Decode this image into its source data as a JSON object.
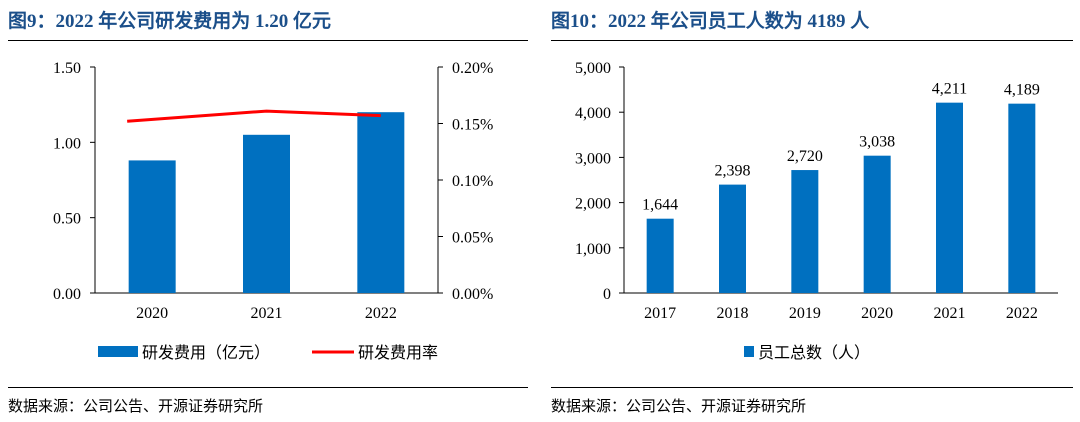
{
  "left": {
    "title": "图9：2022 年公司研发费用为 1.20 亿元",
    "source": "数据来源：公司公告、开源证券研究所",
    "legend_bar_color": "#0070C0",
    "legend_line_color": "#FF0000"
  },
  "right": {
    "title": "图10：2022 年公司员工人数为 4189 人",
    "source": "数据来源：公司公告、开源证券研究所",
    "bar_color": "#0070C0"
  },
  "chart_data": [
    {
      "type": "bar",
      "categories": [
        "2020",
        "2021",
        "2022"
      ],
      "series": [
        {
          "name": "研发费用（亿元）",
          "type": "bar",
          "axis": "left",
          "values": [
            0.88,
            1.05,
            1.2
          ],
          "color": "#0070C0"
        },
        {
          "name": "研发费用率",
          "type": "line",
          "axis": "right",
          "values": [
            0.152,
            0.161,
            0.157
          ],
          "color": "#FF0000"
        }
      ],
      "y_left": {
        "min": 0,
        "max": 1.5,
        "ticks": [
          "0.00",
          "0.50",
          "1.00",
          "1.50"
        ]
      },
      "y_right": {
        "min": 0,
        "max": 0.2,
        "ticks": [
          "0.00%",
          "0.05%",
          "0.10%",
          "0.15%",
          "0.20%"
        ]
      },
      "legend": "bottom",
      "grid": false
    },
    {
      "type": "bar",
      "categories": [
        "2017",
        "2018",
        "2019",
        "2020",
        "2021",
        "2022"
      ],
      "series": [
        {
          "name": "员工总数（人）",
          "values": [
            1644,
            2398,
            2720,
            3038,
            4211,
            4189
          ],
          "labels": [
            "1,644",
            "2,398",
            "2,720",
            "3,038",
            "4,211",
            "4,189"
          ],
          "color": "#0070C0"
        }
      ],
      "y": {
        "min": 0,
        "max": 5000,
        "ticks": [
          "0",
          "1,000",
          "2,000",
          "3,000",
          "4,000",
          "5,000"
        ]
      },
      "legend": "bottom",
      "grid": false
    }
  ]
}
